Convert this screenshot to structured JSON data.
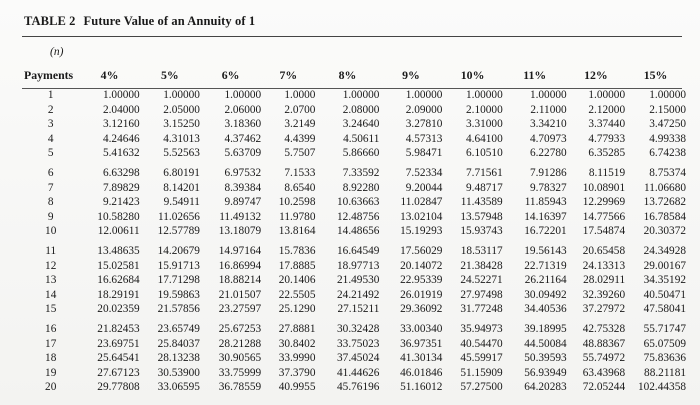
{
  "title": {
    "number": "TABLE 2",
    "text": "Future Value of an Annuity of 1"
  },
  "header": {
    "n_label": "(n)",
    "payments_label": "Payments",
    "rates": [
      "4%",
      "5%",
      "6%",
      "7%",
      "8%",
      "9%",
      "10%",
      "11%",
      "12%",
      "15%"
    ]
  },
  "rows": [
    {
      "n": "1",
      "values": [
        "1.00000",
        "1.00000",
        "1.00000",
        "1.0000",
        "1.00000",
        "1.00000",
        "1.00000",
        "1.00000",
        "1.00000",
        "1.00000"
      ]
    },
    {
      "n": "2",
      "values": [
        "2.04000",
        "2.05000",
        "2.06000",
        "2.0700",
        "2.08000",
        "2.09000",
        "2.10000",
        "2.11000",
        "2.12000",
        "2.15000"
      ]
    },
    {
      "n": "3",
      "values": [
        "3.12160",
        "3.15250",
        "3.18360",
        "3.2149",
        "3.24640",
        "3.27810",
        "3.31000",
        "3.34210",
        "3.37440",
        "3.47250"
      ]
    },
    {
      "n": "4",
      "values": [
        "4.24646",
        "4.31013",
        "4.37462",
        "4.4399",
        "4.50611",
        "4.57313",
        "4.64100",
        "4.70973",
        "4.77933",
        "4.99338"
      ]
    },
    {
      "n": "5",
      "values": [
        "5.41632",
        "5.52563",
        "5.63709",
        "5.7507",
        "5.86660",
        "5.98471",
        "6.10510",
        "6.22780",
        "6.35285",
        "6.74238"
      ]
    },
    {
      "n": "6",
      "values": [
        "6.63298",
        "6.80191",
        "6.97532",
        "7.1533",
        "7.33592",
        "7.52334",
        "7.71561",
        "7.91286",
        "8.11519",
        "8.75374"
      ]
    },
    {
      "n": "7",
      "values": [
        "7.89829",
        "8.14201",
        "8.39384",
        "8.6540",
        "8.92280",
        "9.20044",
        "9.48717",
        "9.78327",
        "10.08901",
        "11.06680"
      ]
    },
    {
      "n": "8",
      "values": [
        "9.21423",
        "9.54911",
        "9.89747",
        "10.2598",
        "10.63663",
        "11.02847",
        "11.43589",
        "11.85943",
        "12.29969",
        "13.72682"
      ]
    },
    {
      "n": "9",
      "values": [
        "10.58280",
        "11.02656",
        "11.49132",
        "11.9780",
        "12.48756",
        "13.02104",
        "13.57948",
        "14.16397",
        "14.77566",
        "16.78584"
      ]
    },
    {
      "n": "10",
      "values": [
        "12.00611",
        "12.57789",
        "13.18079",
        "13.8164",
        "14.48656",
        "15.19293",
        "15.93743",
        "16.72201",
        "17.54874",
        "20.30372"
      ]
    },
    {
      "n": "11",
      "values": [
        "13.48635",
        "14.20679",
        "14.97164",
        "15.7836",
        "16.64549",
        "17.56029",
        "18.53117",
        "19.56143",
        "20.65458",
        "24.34928"
      ]
    },
    {
      "n": "12",
      "values": [
        "15.02581",
        "15.91713",
        "16.86994",
        "17.8885",
        "18.97713",
        "20.14072",
        "21.38428",
        "22.71319",
        "24.13313",
        "29.00167"
      ]
    },
    {
      "n": "13",
      "values": [
        "16.62684",
        "17.71298",
        "18.88214",
        "20.1406",
        "21.49530",
        "22.95339",
        "24.52271",
        "26.21164",
        "28.02911",
        "34.35192"
      ]
    },
    {
      "n": "14",
      "values": [
        "18.29191",
        "19.59863",
        "21.01507",
        "22.5505",
        "24.21492",
        "26.01919",
        "27.97498",
        "30.09492",
        "32.39260",
        "40.50471"
      ]
    },
    {
      "n": "15",
      "values": [
        "20.02359",
        "21.57856",
        "23.27597",
        "25.1290",
        "27.15211",
        "29.36092",
        "31.77248",
        "34.40536",
        "37.27972",
        "47.58041"
      ]
    },
    {
      "n": "16",
      "values": [
        "21.82453",
        "23.65749",
        "25.67253",
        "27.8881",
        "30.32428",
        "33.00340",
        "35.94973",
        "39.18995",
        "42.75328",
        "55.71747"
      ]
    },
    {
      "n": "17",
      "values": [
        "23.69751",
        "25.84037",
        "28.21288",
        "30.8402",
        "33.75023",
        "36.97351",
        "40.54470",
        "44.50084",
        "48.88367",
        "65.07509"
      ]
    },
    {
      "n": "18",
      "values": [
        "25.64541",
        "28.13238",
        "30.90565",
        "33.9990",
        "37.45024",
        "41.30134",
        "45.59917",
        "50.39593",
        "55.74972",
        "75.83636"
      ]
    },
    {
      "n": "19",
      "values": [
        "27.67123",
        "30.53900",
        "33.75999",
        "37.3790",
        "41.44626",
        "46.01846",
        "51.15909",
        "56.93949",
        "63.43968",
        "88.21181"
      ]
    },
    {
      "n": "20",
      "values": [
        "29.77808",
        "33.06595",
        "36.78559",
        "40.9955",
        "45.76196",
        "51.16012",
        "57.27500",
        "64.20283",
        "72.05244",
        "102.44358"
      ]
    }
  ]
}
